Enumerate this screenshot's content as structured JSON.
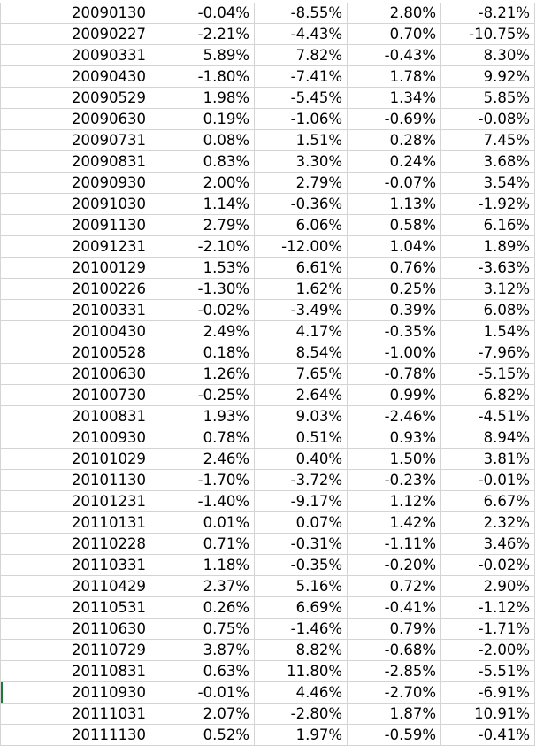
{
  "sheet": {
    "colors": {
      "gridline": "#d4d4d4",
      "text": "#000000",
      "selection_edge": "#1f7a3a"
    },
    "rows": [
      [
        "20090130",
        "-0.04%",
        "-8.55%",
        "2.80%",
        "-8.21%"
      ],
      [
        "20090227",
        "-2.21%",
        "-4.43%",
        "0.70%",
        "-10.75%"
      ],
      [
        "20090331",
        "5.89%",
        "7.82%",
        "-0.43%",
        "8.30%"
      ],
      [
        "20090430",
        "-1.80%",
        "-7.41%",
        "1.78%",
        "9.92%"
      ],
      [
        "20090529",
        "1.98%",
        "-5.45%",
        "1.34%",
        "5.85%"
      ],
      [
        "20090630",
        "0.19%",
        "-1.06%",
        "-0.69%",
        "-0.08%"
      ],
      [
        "20090731",
        "0.08%",
        "1.51%",
        "0.28%",
        "7.45%"
      ],
      [
        "20090831",
        "0.83%",
        "3.30%",
        "0.24%",
        "3.68%"
      ],
      [
        "20090930",
        "2.00%",
        "2.79%",
        "-0.07%",
        "3.54%"
      ],
      [
        "20091030",
        "1.14%",
        "-0.36%",
        "1.13%",
        "-1.92%"
      ],
      [
        "20091130",
        "2.79%",
        "6.06%",
        "0.58%",
        "6.16%"
      ],
      [
        "20091231",
        "-2.10%",
        "-12.00%",
        "1.04%",
        "1.89%"
      ],
      [
        "20100129",
        "1.53%",
        "6.61%",
        "0.76%",
        "-3.63%"
      ],
      [
        "20100226",
        "-1.30%",
        "1.62%",
        "0.25%",
        "3.12%"
      ],
      [
        "20100331",
        "-0.02%",
        "-3.49%",
        "0.39%",
        "6.08%"
      ],
      [
        "20100430",
        "2.49%",
        "4.17%",
        "-0.35%",
        "1.54%"
      ],
      [
        "20100528",
        "0.18%",
        "8.54%",
        "-1.00%",
        "-7.96%"
      ],
      [
        "20100630",
        "1.26%",
        "7.65%",
        "-0.78%",
        "-5.15%"
      ],
      [
        "20100730",
        "-0.25%",
        "2.64%",
        "0.99%",
        "6.82%"
      ],
      [
        "20100831",
        "1.93%",
        "9.03%",
        "-2.46%",
        "-4.51%"
      ],
      [
        "20100930",
        "0.78%",
        "0.51%",
        "0.93%",
        "8.94%"
      ],
      [
        "20101029",
        "2.46%",
        "0.40%",
        "1.50%",
        "3.81%"
      ],
      [
        "20101130",
        "-1.70%",
        "-3.72%",
        "-0.23%",
        "-0.01%"
      ],
      [
        "20101231",
        "-1.40%",
        "-9.17%",
        "1.12%",
        "6.67%"
      ],
      [
        "20110131",
        "0.01%",
        "0.07%",
        "1.42%",
        "2.32%"
      ],
      [
        "20110228",
        "0.71%",
        "-0.31%",
        "-1.11%",
        "3.46%"
      ],
      [
        "20110331",
        "1.18%",
        "-0.35%",
        "-0.20%",
        "-0.02%"
      ],
      [
        "20110429",
        "2.37%",
        "5.16%",
        "0.72%",
        "2.90%"
      ],
      [
        "20110531",
        "0.26%",
        "6.69%",
        "-0.41%",
        "-1.12%"
      ],
      [
        "20110630",
        "0.75%",
        "-1.46%",
        "0.79%",
        "-1.71%"
      ],
      [
        "20110729",
        "3.87%",
        "8.82%",
        "-0.68%",
        "-2.00%"
      ],
      [
        "20110831",
        "0.63%",
        "11.80%",
        "-2.85%",
        "-5.51%"
      ],
      [
        "20110930",
        "-0.01%",
        "4.46%",
        "-2.70%",
        "-6.91%"
      ],
      [
        "20111031",
        "2.07%",
        "-2.80%",
        "1.87%",
        "10.91%"
      ],
      [
        "20111130",
        "0.52%",
        "1.97%",
        "-0.59%",
        "-0.41%"
      ]
    ]
  }
}
